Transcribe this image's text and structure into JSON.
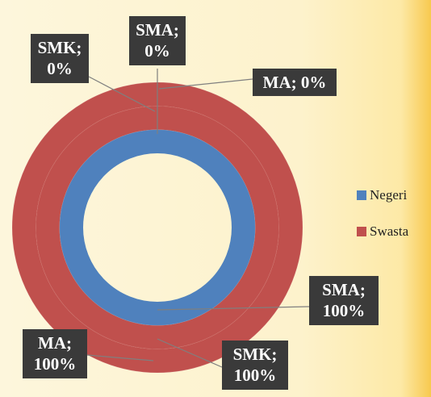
{
  "chart_data": {
    "type": "doughnut",
    "categories": [
      "Negeri",
      "Swasta"
    ],
    "colors": [
      "#4f81bd",
      "#c0504d"
    ],
    "series": [
      {
        "name": "SMA",
        "values": [
          100,
          0
        ],
        "value_labels": [
          "SMA; 100%",
          "SMA; 0%"
        ]
      },
      {
        "name": "SMK",
        "values": [
          0,
          100
        ],
        "value_labels": [
          "SMK; 0%",
          "SMK; 100%"
        ]
      },
      {
        "name": "MA",
        "values": [
          0,
          100
        ],
        "value_labels": [
          "MA; 0%",
          "MA; 100%"
        ]
      }
    ],
    "legend": "right"
  }
}
